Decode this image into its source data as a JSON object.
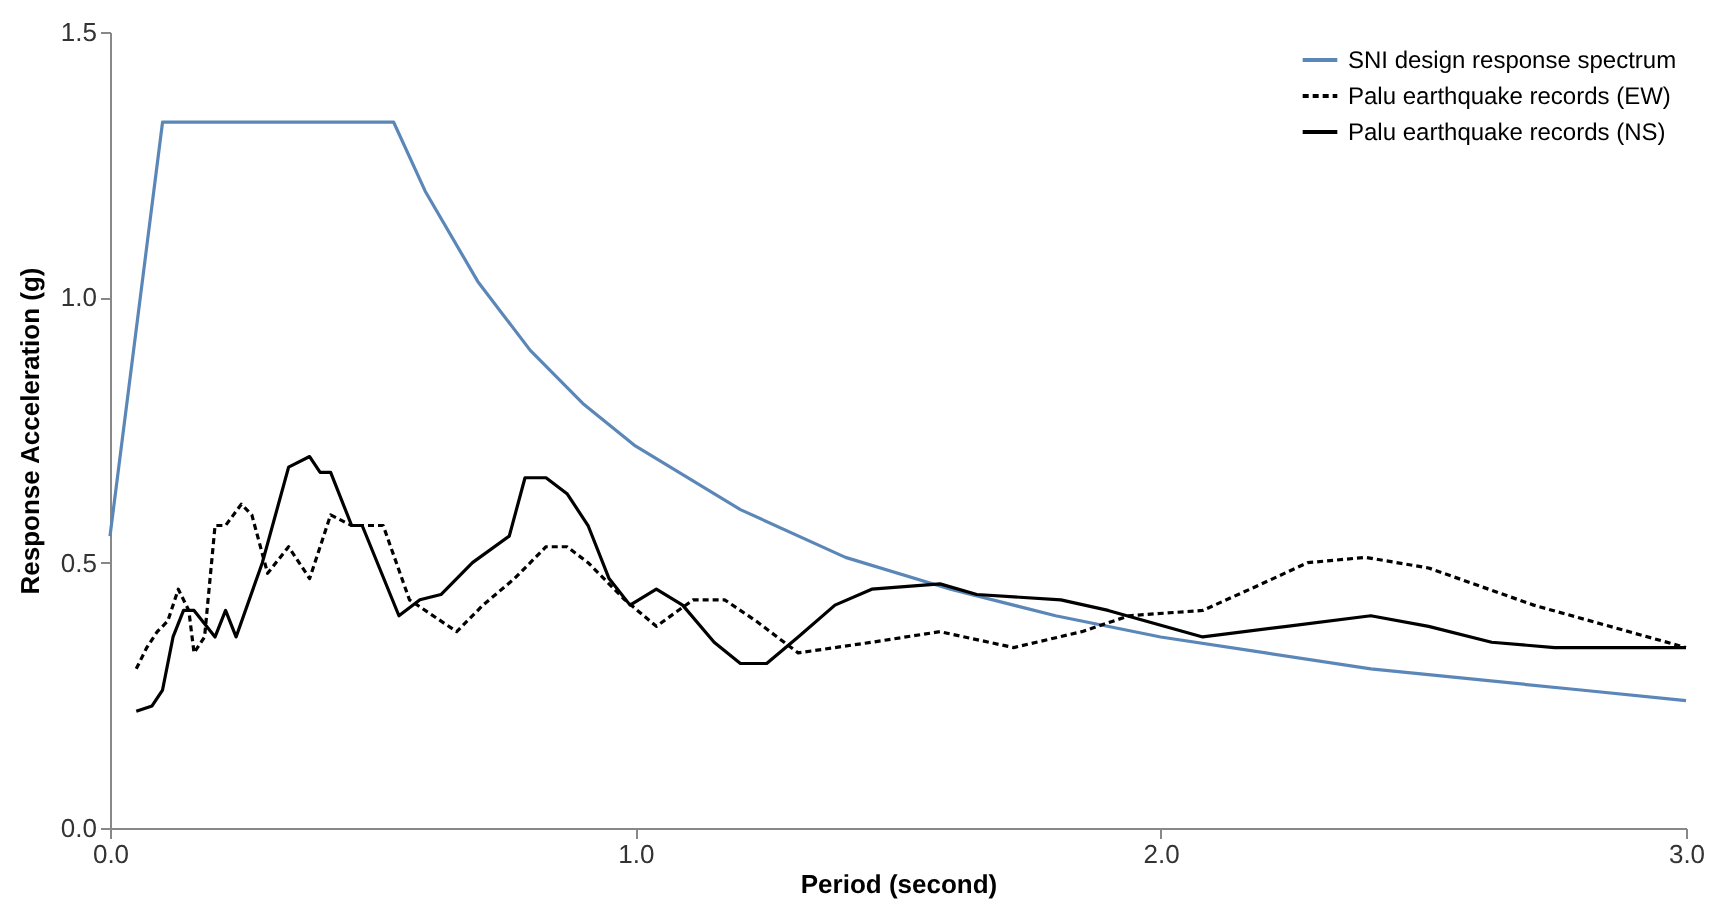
{
  "chart_data": {
    "type": "line",
    "xlabel": "Period (second)",
    "ylabel": "Response Acceleration (g)",
    "xlim": [
      0,
      3
    ],
    "ylim": [
      0,
      1.5
    ],
    "xticks": [
      {
        "value": 0,
        "label": "0.0"
      },
      {
        "value": 1,
        "label": "1.0"
      },
      {
        "value": 2,
        "label": "2.0"
      },
      {
        "value": 3,
        "label": "3.0"
      }
    ],
    "yticks": [
      {
        "value": 0,
        "label": "0.0"
      },
      {
        "value": 0.5,
        "label": "0.5"
      },
      {
        "value": 1,
        "label": "1.0"
      },
      {
        "value": 1.5,
        "label": "1.5"
      }
    ],
    "grid": false,
    "legend": "top right",
    "marker": "none",
    "series": [
      {
        "name": "SNI design response spectrum",
        "color": "#5b87b8",
        "line_style": "solid",
        "x": [
          0,
          0.1,
          0.54,
          0.6,
          0.7,
          0.8,
          0.9,
          1.0,
          1.2,
          1.4,
          1.6,
          1.8,
          2.0,
          2.2,
          2.4,
          2.6,
          2.8,
          3.0
        ],
        "values": [
          0.55,
          1.33,
          1.33,
          1.2,
          1.03,
          0.9,
          0.8,
          0.72,
          0.6,
          0.51,
          0.45,
          0.4,
          0.36,
          0.33,
          0.3,
          0.28,
          0.26,
          0.24
        ]
      },
      {
        "name": "Palu earthquake records (EW)",
        "color": "#000000",
        "line_style": "dashed",
        "x": [
          0.05,
          0.07,
          0.09,
          0.11,
          0.13,
          0.15,
          0.16,
          0.18,
          0.2,
          0.22,
          0.25,
          0.27,
          0.3,
          0.34,
          0.38,
          0.42,
          0.46,
          0.52,
          0.57,
          0.66,
          0.71,
          0.77,
          0.83,
          0.87,
          0.91,
          0.98,
          1.04,
          1.11,
          1.17,
          1.23,
          1.31,
          1.45,
          1.58,
          1.72,
          1.85,
          1.94,
          2.08,
          2.17,
          2.28,
          2.39,
          2.51,
          2.71,
          3.0
        ],
        "values": [
          0.3,
          0.34,
          0.37,
          0.39,
          0.45,
          0.41,
          0.33,
          0.36,
          0.57,
          0.57,
          0.61,
          0.59,
          0.48,
          0.53,
          0.47,
          0.59,
          0.57,
          0.57,
          0.43,
          0.37,
          0.42,
          0.47,
          0.53,
          0.53,
          0.5,
          0.43,
          0.38,
          0.43,
          0.43,
          0.39,
          0.33,
          0.35,
          0.37,
          0.34,
          0.37,
          0.4,
          0.41,
          0.45,
          0.5,
          0.51,
          0.49,
          0.42,
          0.34
        ]
      },
      {
        "name": "Palu earthquake records (NS)",
        "color": "#000000",
        "line_style": "solid",
        "x": [
          0.05,
          0.08,
          0.1,
          0.12,
          0.14,
          0.16,
          0.2,
          0.22,
          0.24,
          0.29,
          0.34,
          0.38,
          0.4,
          0.42,
          0.46,
          0.48,
          0.55,
          0.59,
          0.63,
          0.69,
          0.76,
          0.79,
          0.83,
          0.87,
          0.91,
          0.95,
          0.99,
          1.04,
          1.09,
          1.15,
          1.2,
          1.25,
          1.31,
          1.38,
          1.45,
          1.58,
          1.65,
          1.81,
          1.9,
          2.08,
          2.24,
          2.4,
          2.51,
          2.63,
          2.75,
          2.88,
          3.0
        ],
        "values": [
          0.22,
          0.23,
          0.26,
          0.36,
          0.41,
          0.41,
          0.36,
          0.41,
          0.36,
          0.5,
          0.68,
          0.7,
          0.67,
          0.67,
          0.57,
          0.57,
          0.4,
          0.43,
          0.44,
          0.5,
          0.55,
          0.66,
          0.66,
          0.63,
          0.57,
          0.47,
          0.42,
          0.45,
          0.42,
          0.35,
          0.31,
          0.31,
          0.36,
          0.42,
          0.45,
          0.46,
          0.44,
          0.43,
          0.41,
          0.36,
          0.38,
          0.4,
          0.38,
          0.35,
          0.34,
          0.34,
          0.34
        ]
      }
    ]
  }
}
